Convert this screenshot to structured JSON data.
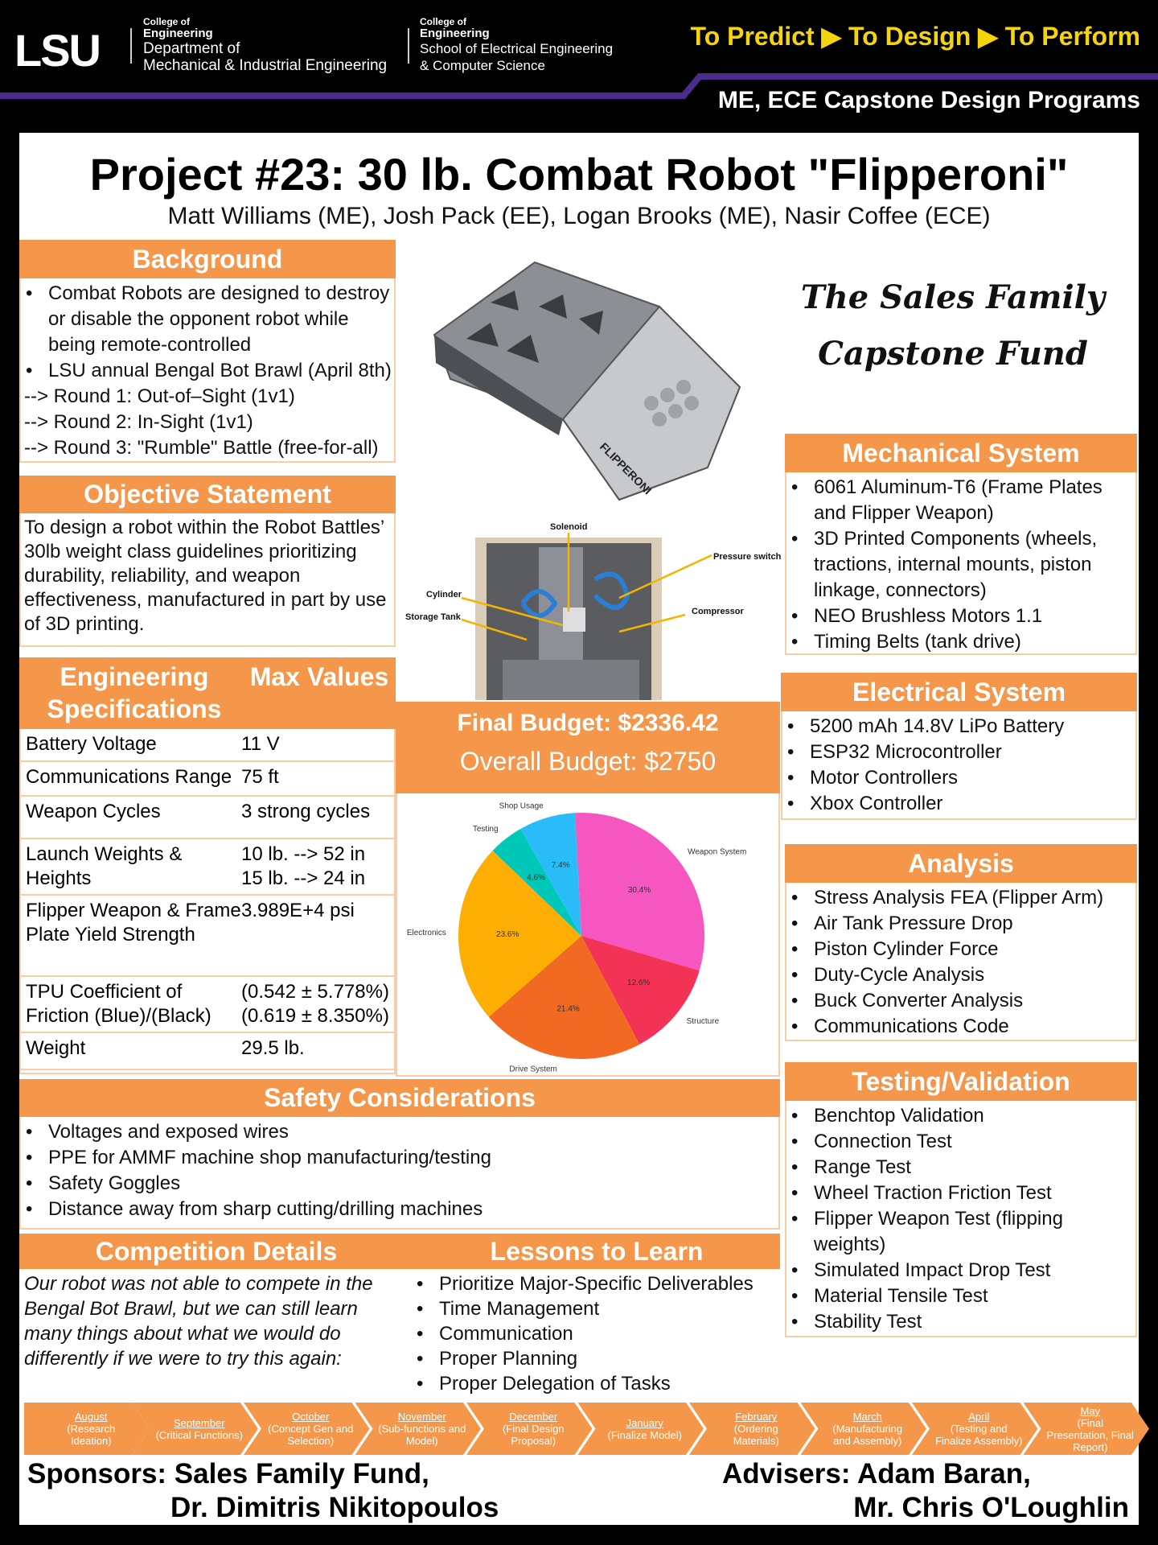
{
  "header": {
    "logo": "LSU",
    "college1_small": "College of",
    "college1_eng": "Engineering",
    "college1_dept1": "Department of",
    "college1_dept2": "Mechanical & Industrial Engineering",
    "college2_small": "College of",
    "college2_eng": "Engineering",
    "college2_dept1": "School of Electrical Engineering",
    "college2_dept2": "& Computer Science",
    "tagline": "To Predict ▶ To Design ▶ To Perform",
    "programs": "ME, ECE Capstone Design Programs",
    "purple": "#4b2c8c",
    "yellow": "#f6d40b"
  },
  "title": "Project #23: 30 lb. Combat Robot \"Flipperoni\"",
  "authors": "Matt Williams (ME), Josh Pack (EE), Logan Brooks (ME), Nasir Coffee (ECE)",
  "accent": "#f5974a",
  "background": {
    "heading": "Background",
    "items": [
      {
        "t": "Combat Robots are designed to destroy or disable the opponent robot while being remote-controlled",
        "b": true
      },
      {
        "t": "LSU annual Bengal Bot Brawl (April 8th)",
        "b": true
      },
      {
        "t": "--> Round 1: Out-of–Sight (1v1)",
        "b": false
      },
      {
        "t": "--> Round 2: In-Sight (1v1)",
        "b": false
      },
      {
        "t": "--> Round 3: \"Rumble\" Battle (free-for-all)",
        "b": false
      }
    ]
  },
  "objective": {
    "heading": "Objective Statement",
    "text": "To design a robot within the Robot Battles’ 30lb weight class guidelines prioritizing durability, reliability, and weapon effectiveness, manufactured in part by use of 3D printing."
  },
  "specs": {
    "heading_left": "Engineering Specifications",
    "heading_right": "Max Values",
    "rows": [
      [
        "Battery Voltage",
        "11 V"
      ],
      [
        "Communications Range",
        "75 ft"
      ],
      [
        "Weapon Cycles",
        "3 strong cycles"
      ],
      [
        "Launch Weights & Heights",
        "10 lb. --> 52 in\n15 lb. --> 24 in"
      ],
      [
        "Flipper Weapon & Frame Plate Yield Strength",
        "3.989E+4 psi"
      ],
      [
        "TPU Coefficient of Friction (Blue)/(Black)",
        "(0.542 ± 5.778%)\n(0.619 ± 8.350%)"
      ],
      [
        "Weight",
        "29.5 lb."
      ]
    ]
  },
  "robot_render": {
    "label": "FLIPPERONI"
  },
  "internals": {
    "labels": [
      "Solenoid",
      "Pressure switch",
      "Cylinder",
      "Storage Tank",
      "Compressor"
    ]
  },
  "sponsor_logo": {
    "line1": "The Sales Family",
    "line2": "Capstone Fund"
  },
  "budget": {
    "final": "Final Budget: $2336.42",
    "overall": "Overall Budget: $2750"
  },
  "chart_data": {
    "type": "pie",
    "title": "",
    "slices": [
      {
        "label": "Weapon System",
        "value": 30.4,
        "color": "#f656c0"
      },
      {
        "label": "Structure",
        "value": 12.6,
        "color": "#f23356"
      },
      {
        "label": "Drive System",
        "value": 21.4,
        "color": "#f26a22"
      },
      {
        "label": "Electronics",
        "value": 23.6,
        "color": "#fdae02"
      },
      {
        "label": "Testing",
        "value": 4.6,
        "color": "#00c8b8"
      },
      {
        "label": "Shop Usage",
        "value": 7.4,
        "color": "#2abcf8"
      }
    ],
    "value_format": "percent, 1 decimal"
  },
  "mechanical": {
    "heading": "Mechanical System",
    "items": [
      "6061 Aluminum-T6 (Frame Plates and Flipper Weapon)",
      "3D Printed Components (wheels, tractions, internal mounts, piston linkage, connectors)",
      "NEO Brushless Motors 1.1",
      "Timing Belts (tank drive)"
    ]
  },
  "electrical": {
    "heading": "Electrical System",
    "items": [
      "5200 mAh 14.8V LiPo Battery",
      "ESP32 Microcontroller",
      "Motor Controllers",
      "Xbox Controller"
    ]
  },
  "analysis": {
    "heading": "Analysis",
    "items": [
      "Stress Analysis FEA (Flipper Arm)",
      "Air Tank Pressure Drop",
      "Piston Cylinder Force",
      "Duty-Cycle Analysis",
      "Buck Converter Analysis",
      "Communications Code"
    ]
  },
  "testing": {
    "heading": "Testing/Validation",
    "items": [
      "Benchtop Validation",
      "Connection Test",
      "Range Test",
      "Wheel Traction Friction Test",
      "Flipper Weapon Test (flipping weights)",
      "Simulated Impact Drop Test",
      "Material Tensile Test",
      "Stability Test"
    ]
  },
  "safety": {
    "heading": "Safety Considerations",
    "items": [
      "Voltages and exposed wires",
      "PPE for AMMF machine shop manufacturing/testing",
      "Safety Goggles",
      "Distance away from sharp cutting/drilling machines"
    ]
  },
  "competition": {
    "heading": "Competition Details",
    "text": "Our robot was not able to compete in the Bengal Bot Brawl, but we can still learn many things about what we would do differently if we were to try this again:"
  },
  "lessons": {
    "heading": "Lessons to Learn",
    "items": [
      "Prioritize Major-Specific Deliverables",
      "Time Management",
      "Communication",
      "Proper Planning",
      "Proper Delegation of Tasks"
    ]
  },
  "timeline": [
    {
      "month": "August",
      "desc": " (Research Ideation)"
    },
    {
      "month": "September",
      "desc": "(Critical Functions)"
    },
    {
      "month": "October",
      "desc": "(Concept Gen and Selection)"
    },
    {
      "month": "November",
      "desc": "(Sub-functions and Model)"
    },
    {
      "month": "December",
      "desc": "(Final Design Proposal)"
    },
    {
      "month": "January",
      "desc": "(Finalize Model)"
    },
    {
      "month": "February",
      "desc": "(Ordering Materials)"
    },
    {
      "month": "March",
      "desc": "(Manufacturing and Assembly)"
    },
    {
      "month": "April",
      "desc": " (Testing and Finalize Assembly)"
    },
    {
      "month": "May",
      "desc": " (Final Presentation, Final Report)"
    }
  ],
  "footer": {
    "sponsors_1": "Sponsors: Sales Family Fund,",
    "sponsors_2": "Dr. Dimitris Nikitopoulos",
    "advisers_1": "Advisers: Adam Baran,",
    "advisers_2": "Mr. Chris O'Loughlin"
  }
}
